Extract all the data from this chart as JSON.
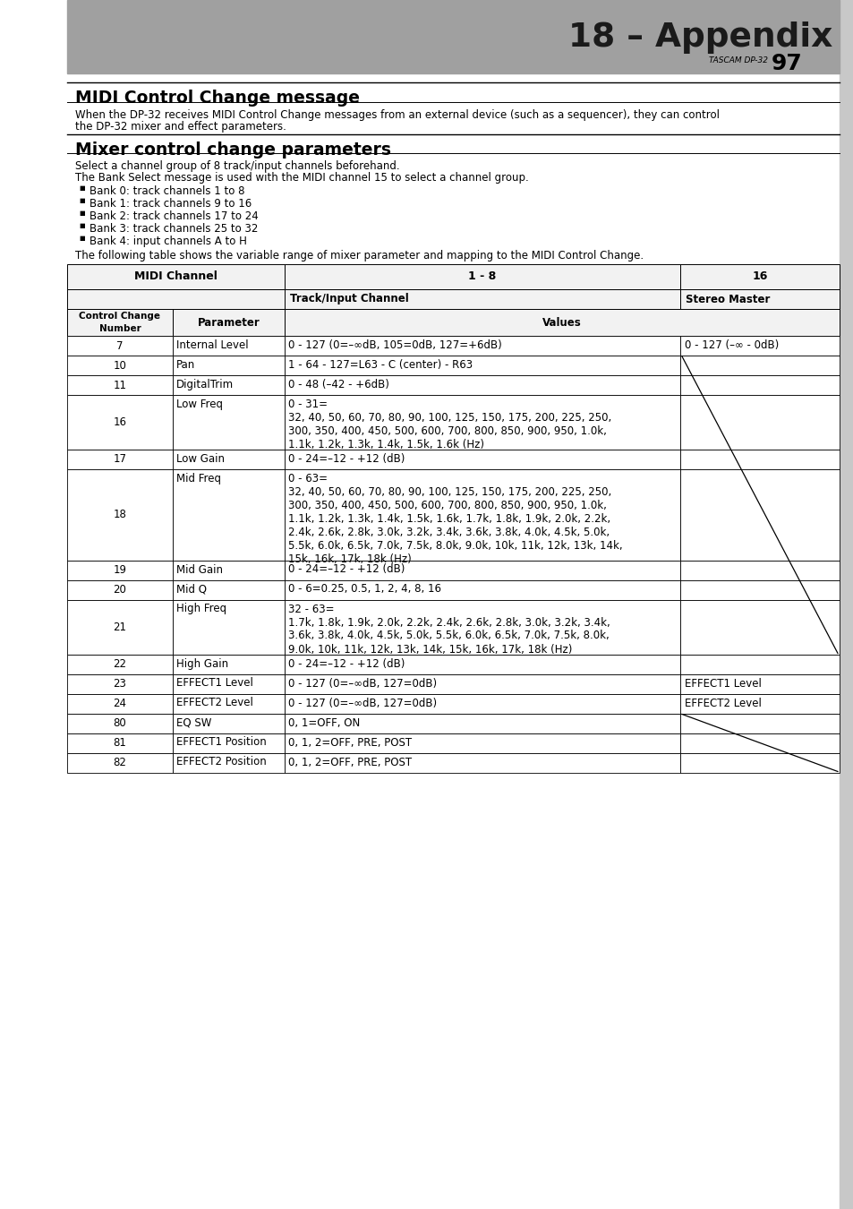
{
  "title": "18 – Appendix",
  "section1_title": "MIDI Control Change message",
  "section1_body_line1": "When the DP-32 receives MIDI Control Change messages from an external device (such as a sequencer), they can control",
  "section1_body_line2": "the DP-32 mixer and effect parameters.",
  "section2_title": "Mixer control change parameters",
  "section2_intro": "Select a channel group of 8 track/input channels beforehand.",
  "section2_body2": "The Bank Select message is used with the MIDI channel 15 to select a channel group.",
  "bullets": [
    "Bank 0: track channels 1 to 8",
    "Bank 1: track channels 9 to 16",
    "Bank 2: track channels 17 to 24",
    "Bank 3: track channels 25 to 32",
    "Bank 4: input channels A to H"
  ],
  "table_intro": "The following table shows the variable range of mixer parameter and mapping to the MIDI Control Change.",
  "rows": [
    [
      "7",
      "Internal Level",
      "0 - 127 (0=–∞dB, 105=0dB, 127=+6dB)",
      "0 - 127 (–∞ - 0dB)"
    ],
    [
      "10",
      "Pan",
      "1 - 64 - 127=L63 - C (center) - R63",
      ""
    ],
    [
      "11",
      "DigitalTrim",
      "0 - 48 (–42 - +6dB)",
      ""
    ],
    [
      "16",
      "Low Freq",
      "0 - 31=\n32, 40, 50, 60, 70, 80, 90, 100, 125, 150, 175, 200, 225, 250,\n300, 350, 400, 450, 500, 600, 700, 800, 850, 900, 950, 1.0k,\n1.1k, 1.2k, 1.3k, 1.4k, 1.5k, 1.6k (Hz)",
      ""
    ],
    [
      "17",
      "Low Gain",
      "0 - 24=–12 - +12 (dB)",
      ""
    ],
    [
      "18",
      "Mid Freq",
      "0 - 63=\n32, 40, 50, 60, 70, 80, 90, 100, 125, 150, 175, 200, 225, 250,\n300, 350, 400, 450, 500, 600, 700, 800, 850, 900, 950, 1.0k,\n1.1k, 1.2k, 1.3k, 1.4k, 1.5k, 1.6k, 1.7k, 1.8k, 1.9k, 2.0k, 2.2k,\n2.4k, 2.6k, 2.8k, 3.0k, 3.2k, 3.4k, 3.6k, 3.8k, 4.0k, 4.5k, 5.0k,\n5.5k, 6.0k, 6.5k, 7.0k, 7.5k, 8.0k, 9.0k, 10k, 11k, 12k, 13k, 14k,\n15k, 16k, 17k, 18k (Hz)",
      ""
    ],
    [
      "19",
      "Mid Gain",
      "0 - 24=–12 - +12 (dB)",
      ""
    ],
    [
      "20",
      "Mid Q",
      "0 - 6=0.25, 0.5, 1, 2, 4, 8, 16",
      ""
    ],
    [
      "21",
      "High Freq",
      "32 - 63=\n1.7k, 1.8k, 1.9k, 2.0k, 2.2k, 2.4k, 2.6k, 2.8k, 3.0k, 3.2k, 3.4k,\n3.6k, 3.8k, 4.0k, 4.5k, 5.0k, 5.5k, 6.0k, 6.5k, 7.0k, 7.5k, 8.0k,\n9.0k, 10k, 11k, 12k, 13k, 14k, 15k, 16k, 17k, 18k (Hz)",
      ""
    ],
    [
      "22",
      "High Gain",
      "0 - 24=–12 - +12 (dB)",
      ""
    ],
    [
      "23",
      "EFFECT1 Level",
      "0 - 127 (0=–∞dB, 127=0dB)",
      "EFFECT1 Level"
    ],
    [
      "24",
      "EFFECT2 Level",
      "0 - 127 (0=–∞dB, 127=0dB)",
      "EFFECT2 Level"
    ],
    [
      "80",
      "EQ SW",
      "0, 1=OFF, ON",
      ""
    ],
    [
      "81",
      "EFFECT1 Position",
      "0, 1, 2=OFF, PRE, POST",
      ""
    ],
    [
      "82",
      "EFFECT2 Position",
      "0, 1, 2=OFF, PRE, POST",
      ""
    ]
  ],
  "header_gray": "#a0a0a0",
  "cell_header_bg": "#f2f2f2",
  "cell_white": "#ffffff",
  "sidebar_gray": "#c8c8c8"
}
